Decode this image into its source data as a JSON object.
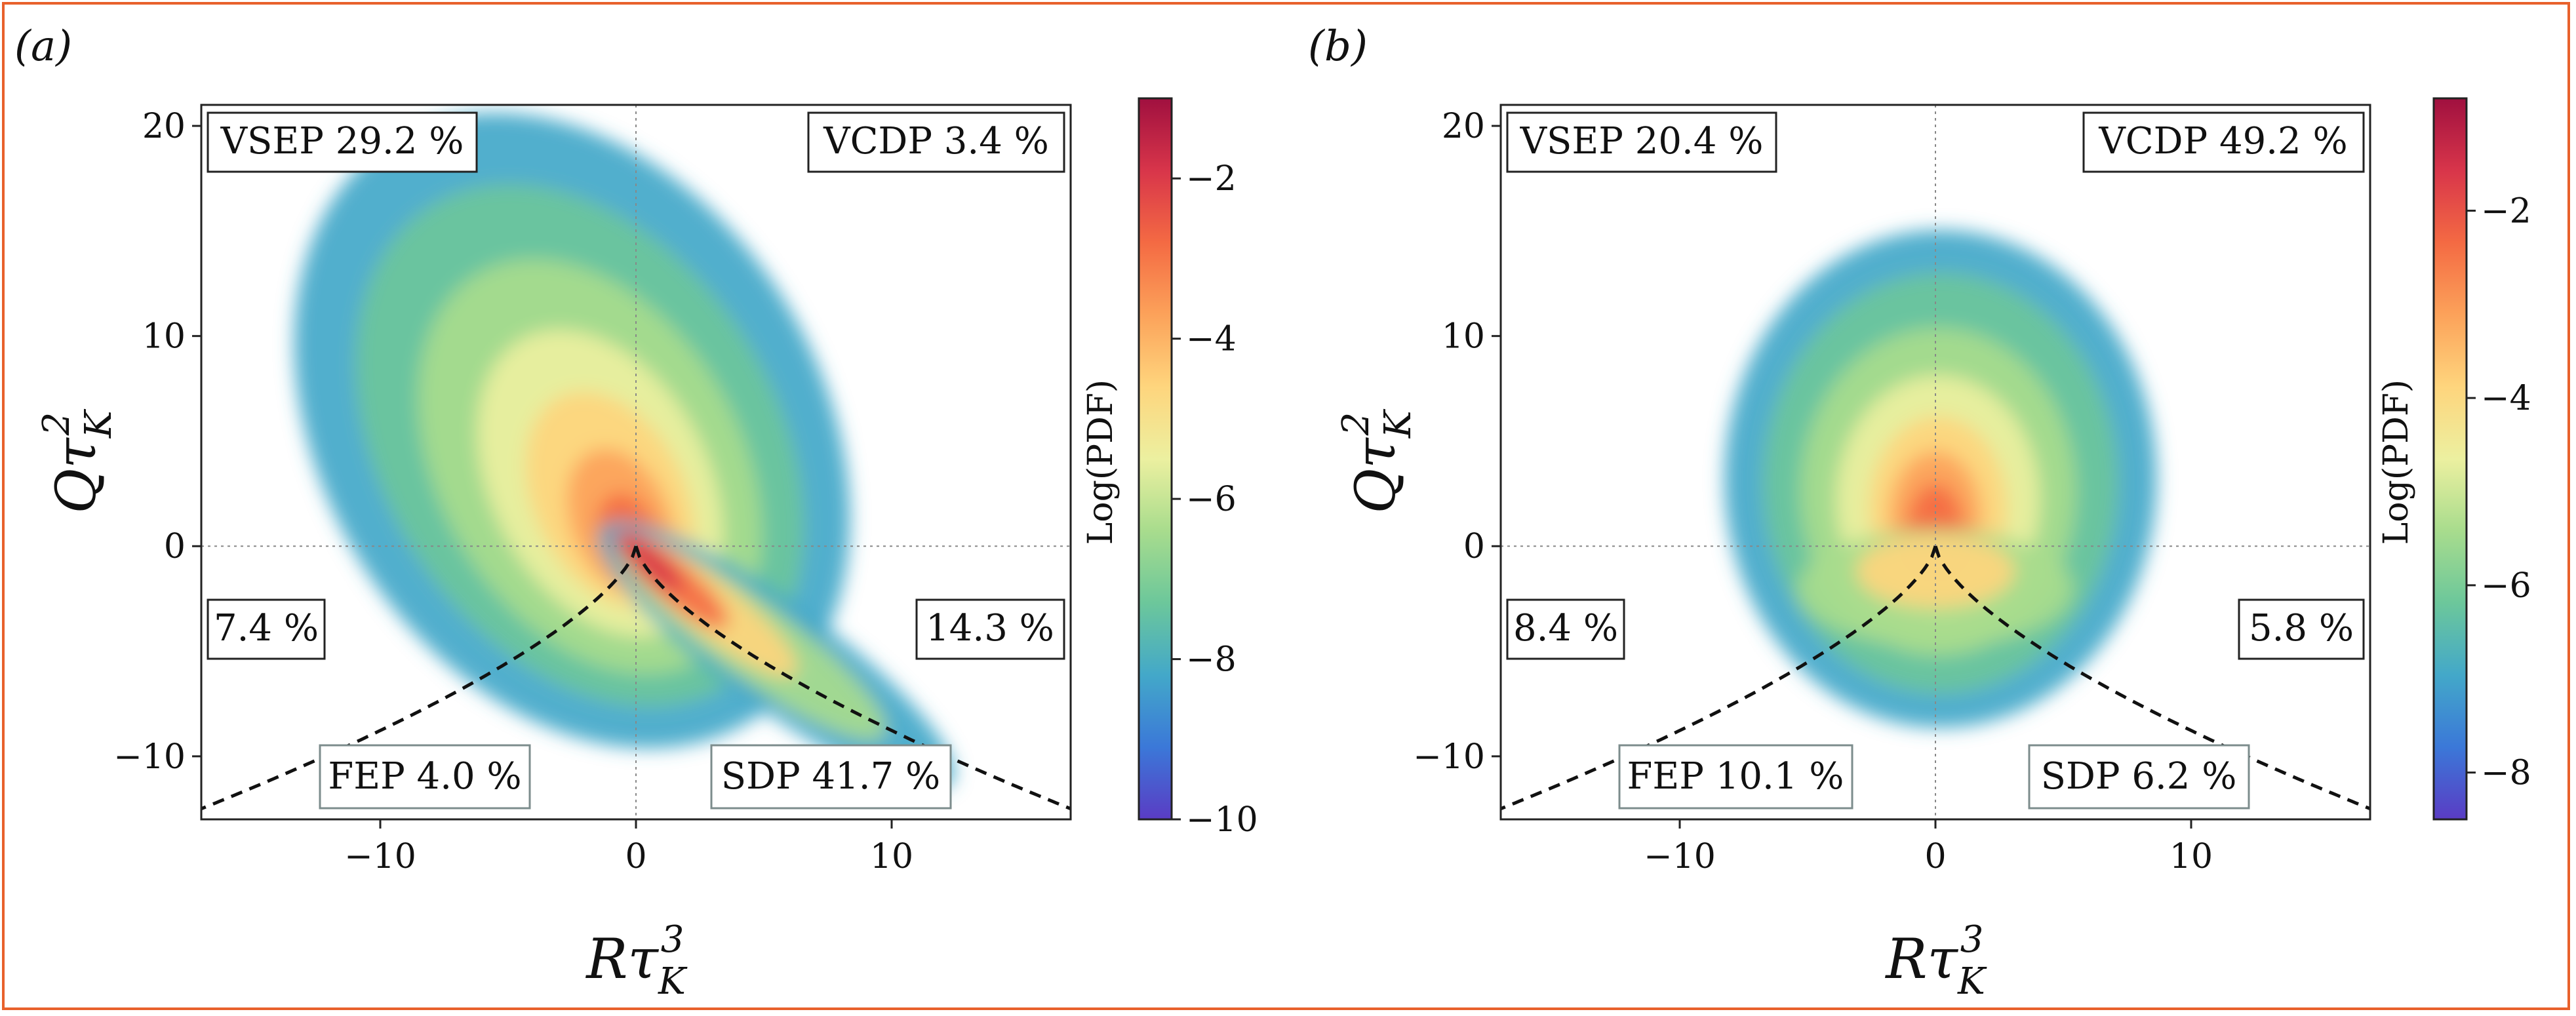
{
  "colors": {
    "frame": "#e8612c",
    "colormap": [
      "#5a3cc4",
      "#3b78d8",
      "#43a8c9",
      "#6cc79b",
      "#a8dc8d",
      "#ecf0a0",
      "#fed57d",
      "#fca25a",
      "#f46a43",
      "#d8354a",
      "#a0103f"
    ]
  },
  "chart_data": [
    {
      "type": "heatmap",
      "panel_label": "(a)",
      "xlabel": "Rτ_K^3",
      "ylabel": "Qτ_K^2",
      "xlim": [
        -17,
        17
      ],
      "ylim": [
        -13,
        21
      ],
      "xticks": [
        -10,
        0,
        10
      ],
      "yticks": [
        -10,
        0,
        10,
        20
      ],
      "quadrant_labels": [
        {
          "text": "VSEP 29.2 %",
          "region": "top-left"
        },
        {
          "text": "VCDP 3.4 %",
          "region": "top-right"
        },
        {
          "text": "7.4 %",
          "region": "middle-left"
        },
        {
          "text": "14.3 %",
          "region": "middle-right"
        },
        {
          "text": "FEP 4.0 %",
          "region": "bottom-left"
        },
        {
          "text": "SDP 41.7 %",
          "region": "bottom-right"
        }
      ],
      "colorbar": {
        "label": "Log(PDF)",
        "range": [
          -10,
          -1
        ],
        "ticks": [
          -2,
          -4,
          -6,
          -8,
          -10
        ]
      },
      "discriminant_curve": "Q = -(27/4 R^2)^(1/3)"
    },
    {
      "type": "heatmap",
      "panel_label": "(b)",
      "xlabel": "Rτ_K^3",
      "ylabel": "Qτ_K^2",
      "xlim": [
        -17,
        17
      ],
      "ylim": [
        -13,
        21
      ],
      "xticks": [
        -10,
        0,
        10
      ],
      "yticks": [
        -10,
        0,
        10,
        20
      ],
      "quadrant_labels": [
        {
          "text": "VSEP 20.4 %",
          "region": "top-left"
        },
        {
          "text": "VCDP 49.2 %",
          "region": "top-right"
        },
        {
          "text": "8.4 %",
          "region": "middle-left"
        },
        {
          "text": "5.8 %",
          "region": "middle-right"
        },
        {
          "text": "FEP 10.1 %",
          "region": "bottom-left"
        },
        {
          "text": "SDP 6.2 %",
          "region": "bottom-right"
        }
      ],
      "colorbar": {
        "label": "Log(PDF)",
        "range": [
          -8.5,
          -0.8
        ],
        "ticks": [
          -2,
          -4,
          -6,
          -8
        ]
      },
      "discriminant_curve": "Q = -(27/4 R^2)^(1/3)"
    }
  ]
}
